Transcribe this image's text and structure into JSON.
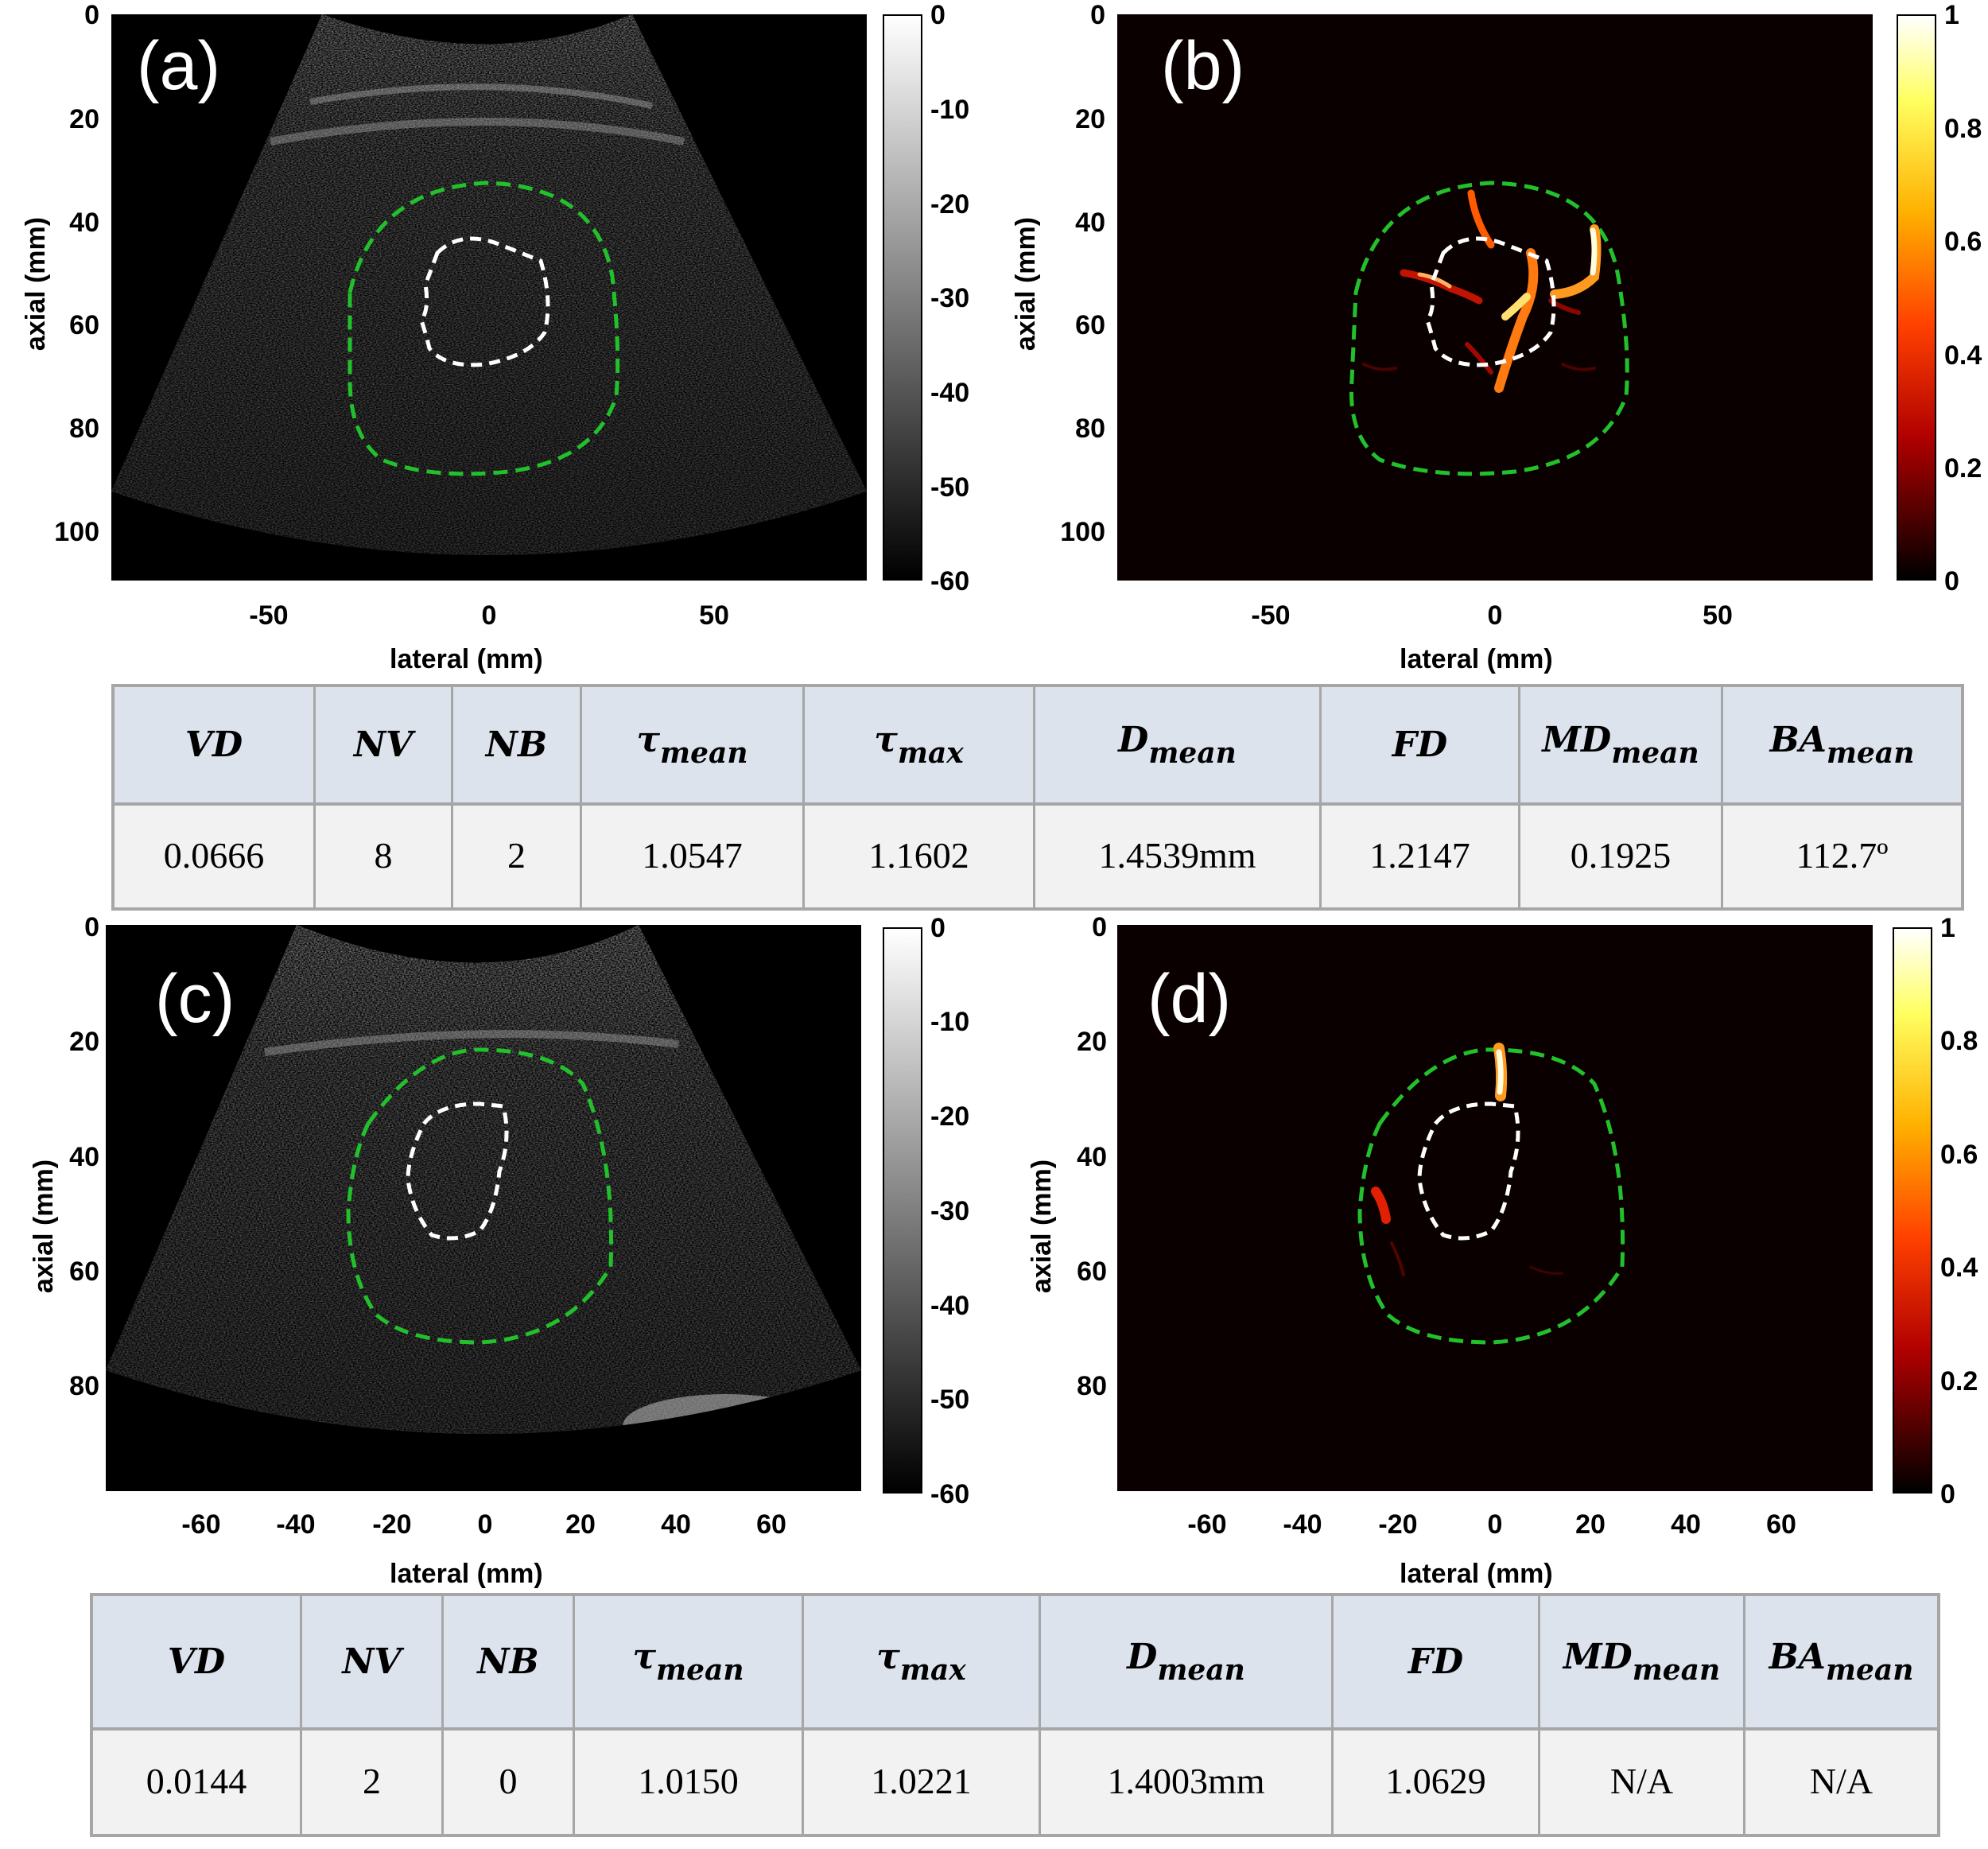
{
  "panels": {
    "a": {
      "label": "(a)"
    },
    "b": {
      "label": "(b)"
    },
    "c": {
      "label": "(c)"
    },
    "d": {
      "label": "(d)"
    }
  },
  "axes": {
    "ylabel": "axial (mm)",
    "xlabel": "lateral (mm)",
    "top_yticks": [
      "0",
      "20",
      "40",
      "60",
      "80",
      "100"
    ],
    "top_xticks": [
      "-50",
      "0",
      "50"
    ],
    "bottom_yticks": [
      "0",
      "20",
      "40",
      "60",
      "80"
    ],
    "bottom_xticks": [
      "-60",
      "-40",
      "-20",
      "0",
      "20",
      "40",
      "60"
    ]
  },
  "colorbars": {
    "gray": {
      "ticks": [
        "0",
        "-10",
        "-20",
        "-30",
        "-40",
        "-50",
        "-60"
      ],
      "colormap": "gray"
    },
    "hot": {
      "ticks": [
        "1",
        "0.8",
        "0.6",
        "0.4",
        "0.2",
        "0"
      ],
      "colormap": "hot"
    }
  },
  "contour_colors": {
    "outer": "#22c12c",
    "inner": "#ffffff"
  },
  "tables": {
    "top": {
      "headers": [
        {
          "main": "VD",
          "sub": ""
        },
        {
          "main": "NV",
          "sub": ""
        },
        {
          "main": "NB",
          "sub": ""
        },
        {
          "main": "τ",
          "sub": "mean"
        },
        {
          "main": "τ",
          "sub": "max"
        },
        {
          "main": "D",
          "sub": "mean"
        },
        {
          "main": "FD",
          "sub": ""
        },
        {
          "main": "MD",
          "sub": "mean"
        },
        {
          "main": "BA",
          "sub": "mean"
        }
      ],
      "values": [
        "0.0666",
        "8",
        "2",
        "1.0547",
        "1.1602",
        "1.4539mm",
        "1.2147",
        "0.1925",
        "112.7º"
      ]
    },
    "bottom": {
      "headers": [
        {
          "main": "VD",
          "sub": ""
        },
        {
          "main": "NV",
          "sub": ""
        },
        {
          "main": "NB",
          "sub": ""
        },
        {
          "main": "τ",
          "sub": "mean"
        },
        {
          "main": "τ",
          "sub": "max"
        },
        {
          "main": "D",
          "sub": "mean"
        },
        {
          "main": "FD",
          "sub": ""
        },
        {
          "main": "MD",
          "sub": "mean"
        },
        {
          "main": "BA",
          "sub": "mean"
        }
      ],
      "values": [
        "0.0144",
        "2",
        "0",
        "1.0150",
        "1.0221",
        "1.4003mm",
        "1.0629",
        "N/A",
        "N/A"
      ]
    }
  }
}
